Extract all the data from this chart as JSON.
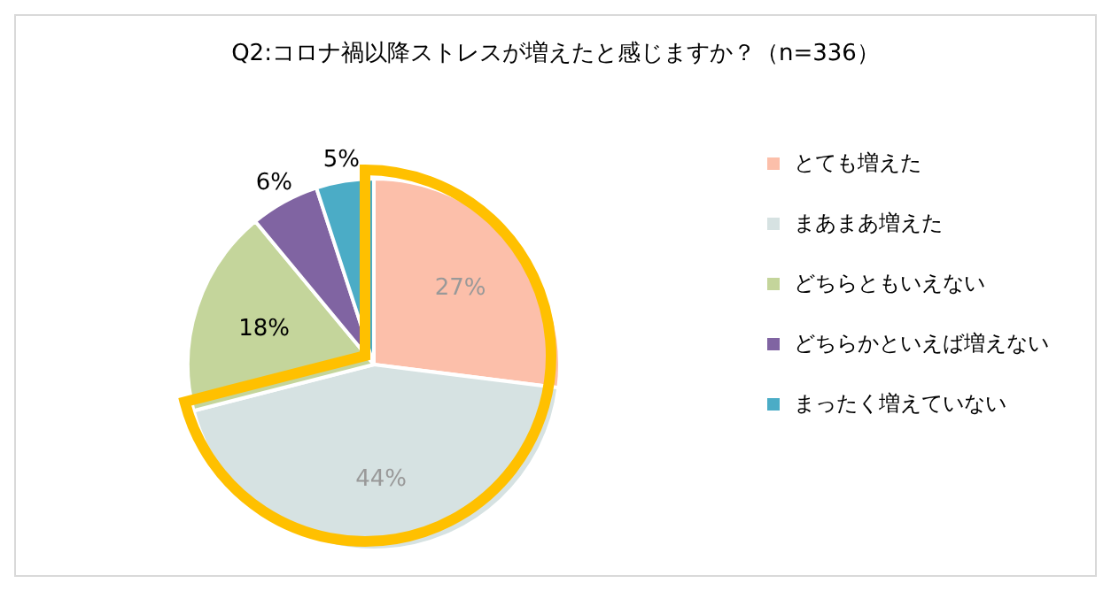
{
  "chart_data": {
    "type": "pie",
    "title": "Q2:コロナ禍以降ストレスが増えたと感じますか？（n=336）",
    "categories": [
      "とても増えた",
      "まあまあ増えた",
      "どちらともいえない",
      "どちらかといえば増えない",
      "まったく増えていない"
    ],
    "values": [
      27,
      44,
      18,
      6,
      5
    ],
    "colors": [
      "#fcbfaa",
      "#d6e2e2",
      "#c4d59b",
      "#8064a2",
      "#4bacc6"
    ],
    "value_labels": [
      "27%",
      "44%",
      "18%",
      "6%",
      "5%"
    ],
    "legend": "right"
  }
}
